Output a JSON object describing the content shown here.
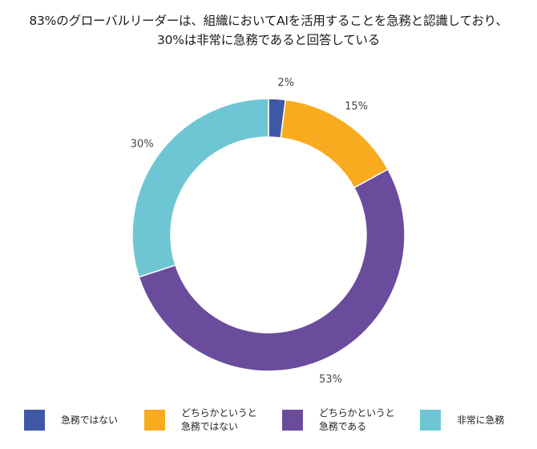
{
  "title": {
    "line1": "83%のグローバルリーダーは、組織においてAIを活用することを急務と認識しており、",
    "line2": "30%は非常に急務であると回答している"
  },
  "chart_data": {
    "type": "pie",
    "donut": true,
    "categories": [
      "急務ではない",
      "どちらかというと\n急務ではない",
      "どちらかというと\n急務である",
      "非常に急務"
    ],
    "values": [
      2,
      15,
      53,
      30
    ],
    "value_labels": [
      "2%",
      "15%",
      "53%",
      "30%"
    ],
    "colors": [
      "#3f58a6",
      "#f9ab1f",
      "#6a4b9c",
      "#6ec6d4"
    ],
    "legend_position": "bottom"
  },
  "legend": [
    {
      "label": "急務ではない",
      "color": "#3f58a6"
    },
    {
      "label": "どちらかというと\n急務ではない",
      "color": "#f9ab1f"
    },
    {
      "label": "どちらかというと\n急務である",
      "color": "#6a4b9c"
    },
    {
      "label": "非常に急務",
      "color": "#6ec6d4"
    }
  ]
}
